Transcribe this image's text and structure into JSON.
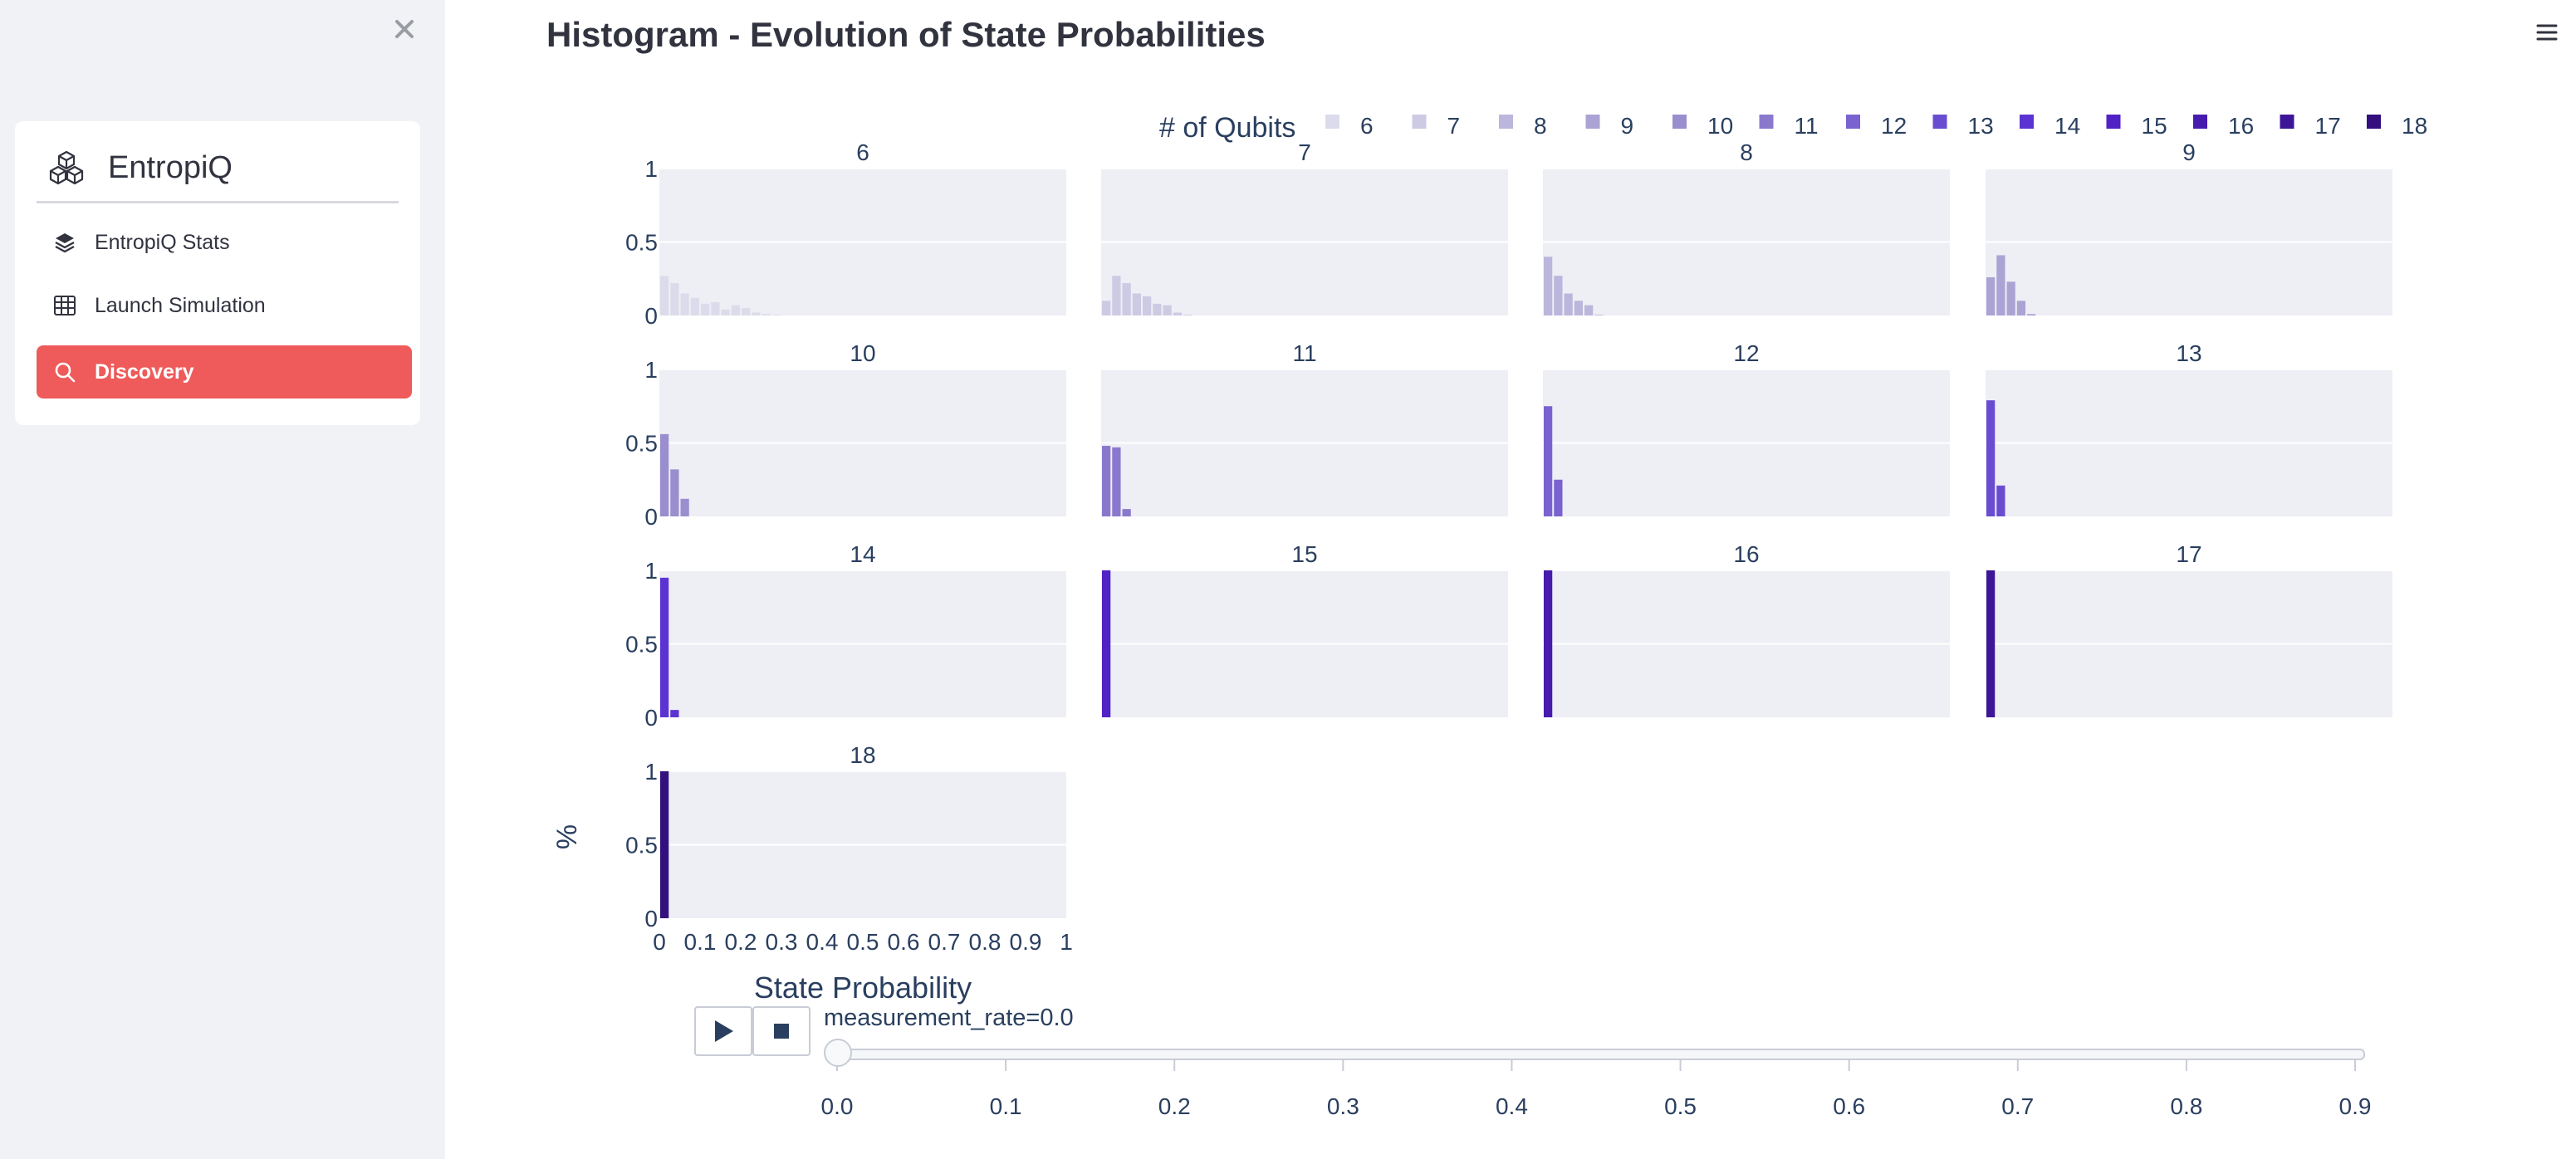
{
  "sidebar": {
    "brand": "EntropiQ",
    "items": [
      {
        "label": "EntropiQ Stats",
        "icon": "layers-icon",
        "active": false
      },
      {
        "label": "Launch Simulation",
        "icon": "grid-icon",
        "active": false
      },
      {
        "label": "Discovery",
        "icon": "search-icon",
        "active": true
      }
    ],
    "accent_color": "#ee5b5a"
  },
  "page": {
    "title": "Histogram - Evolution of State Probabilities"
  },
  "chart_data": {
    "type": "bar",
    "title": "Histogram - Evolution of State Probabilities",
    "xlabel": "State Probability",
    "ylabel": "%",
    "xlim": [
      0,
      1
    ],
    "ylim": [
      0,
      1
    ],
    "x_ticks": [
      "0",
      "0.1",
      "0.2",
      "0.3",
      "0.4",
      "0.5",
      "0.6",
      "0.7",
      "0.8",
      "0.9",
      "1"
    ],
    "y_ticks": [
      "0",
      "0.5",
      "1"
    ],
    "bin_width": 0.025,
    "legend_title": "# of Qubits",
    "legend_position": "top",
    "facet_by": "# of Qubits",
    "facet_columns": 4,
    "series": [
      {
        "name": "6",
        "color": "#dcdbeb",
        "values": [
          0.27,
          0.22,
          0.15,
          0.12,
          0.08,
          0.09,
          0.04,
          0.07,
          0.05,
          0.02,
          0.01,
          0.005
        ]
      },
      {
        "name": "7",
        "color": "#cdcae3",
        "values": [
          0.1,
          0.27,
          0.22,
          0.15,
          0.13,
          0.08,
          0.07,
          0.02,
          0.005
        ]
      },
      {
        "name": "8",
        "color": "#bbb6db",
        "values": [
          0.4,
          0.27,
          0.15,
          0.1,
          0.07,
          0.005
        ]
      },
      {
        "name": "9",
        "color": "#aba3d4",
        "values": [
          0.26,
          0.41,
          0.23,
          0.1,
          0.01
        ]
      },
      {
        "name": "10",
        "color": "#9a8ecf",
        "values": [
          0.56,
          0.32,
          0.12
        ]
      },
      {
        "name": "11",
        "color": "#8a78cd",
        "values": [
          0.48,
          0.47,
          0.05
        ]
      },
      {
        "name": "12",
        "color": "#7a62d0",
        "values": [
          0.75,
          0.25
        ]
      },
      {
        "name": "13",
        "color": "#6a4cd1",
        "values": [
          0.79,
          0.21
        ]
      },
      {
        "name": "14",
        "color": "#5c33d3",
        "values": [
          0.95,
          0.05
        ]
      },
      {
        "name": "15",
        "color": "#5122c4",
        "values": [
          1.0
        ]
      },
      {
        "name": "16",
        "color": "#471bae",
        "values": [
          1.0
        ]
      },
      {
        "name": "17",
        "color": "#3d1697",
        "values": [
          1.0
        ]
      },
      {
        "name": "18",
        "color": "#33107e",
        "values": [
          1.0
        ]
      }
    ]
  },
  "animation": {
    "slider_label": "measurement_rate=0.0",
    "slider_value": 0.0,
    "slider_ticks": [
      "0.0",
      "0.1",
      "0.2",
      "0.3",
      "0.4",
      "0.5",
      "0.6",
      "0.7",
      "0.8",
      "0.9"
    ],
    "controls": [
      {
        "name": "play",
        "icon": "play-icon"
      },
      {
        "name": "stop",
        "icon": "stop-icon"
      }
    ]
  }
}
